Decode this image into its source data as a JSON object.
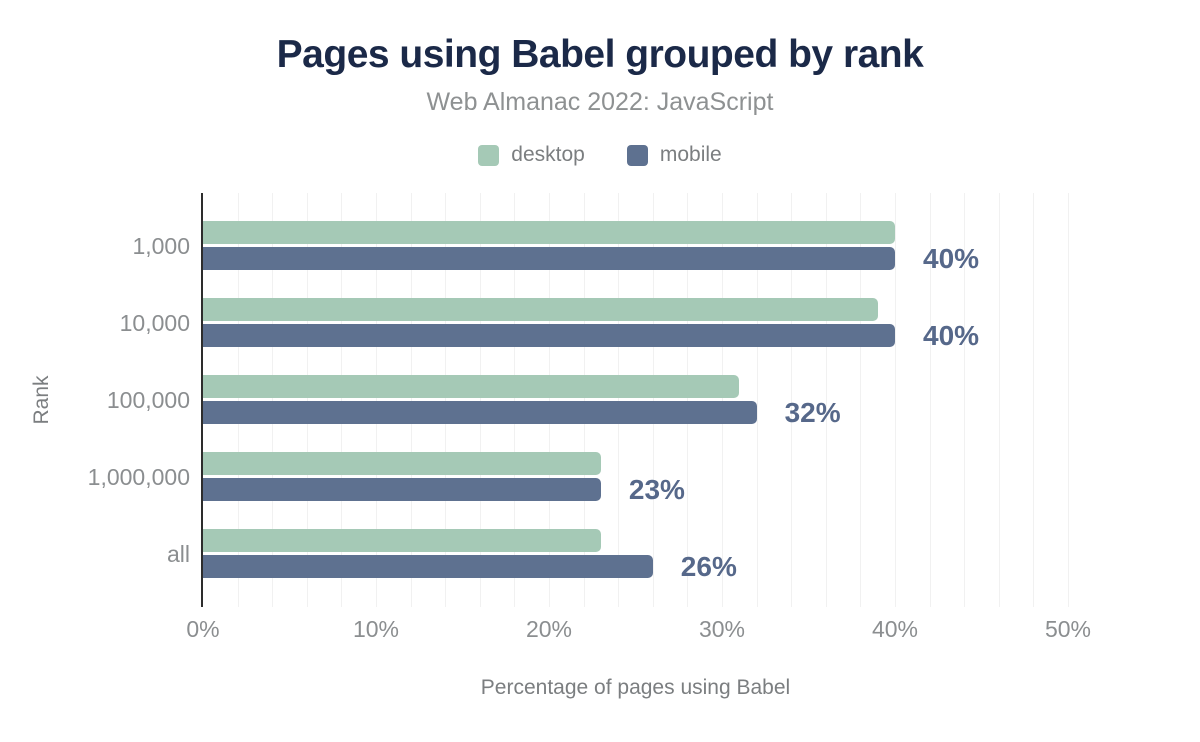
{
  "title": "Pages using Babel grouped by rank",
  "subtitle": "Web Almanac 2022: JavaScript",
  "legend": {
    "items": [
      {
        "label": "desktop",
        "color": "#a5c9b6"
      },
      {
        "label": "mobile",
        "color": "#5e7190"
      }
    ]
  },
  "colors": {
    "desktop_bar": "#a5c9b6",
    "mobile_bar": "#5e7190",
    "title_text": "#1b2948",
    "value_label_text": "#56688a",
    "axis_line": "#2d2d2d",
    "gridline": "#f1f1f1",
    "muted_text": "#8b8e90"
  },
  "chart_data": {
    "type": "bar",
    "orientation": "horizontal",
    "title": "Pages using Babel grouped by rank",
    "subtitle": "Web Almanac 2022: JavaScript",
    "categories": [
      "1,000",
      "10,000",
      "100,000",
      "1,000,000",
      "all"
    ],
    "series": [
      {
        "name": "desktop",
        "color": "#a5c9b6",
        "values": [
          40,
          39,
          31,
          23,
          23
        ]
      },
      {
        "name": "mobile",
        "color": "#5e7190",
        "values": [
          40,
          40,
          32,
          23,
          26
        ]
      }
    ],
    "value_labels": [
      "40%",
      "40%",
      "32%",
      "23%",
      "26%"
    ],
    "value_labels_series": "mobile",
    "xlabel": "Percentage of pages using Babel",
    "ylabel": "Rank",
    "x_ticks": [
      "0%",
      "10%",
      "20%",
      "30%",
      "40%",
      "50%"
    ],
    "x_tick_values": [
      0,
      10,
      20,
      30,
      40,
      50
    ],
    "xlim": [
      0,
      50
    ],
    "grid": "vertical-minor-every-2pct",
    "legend_position": "top"
  }
}
